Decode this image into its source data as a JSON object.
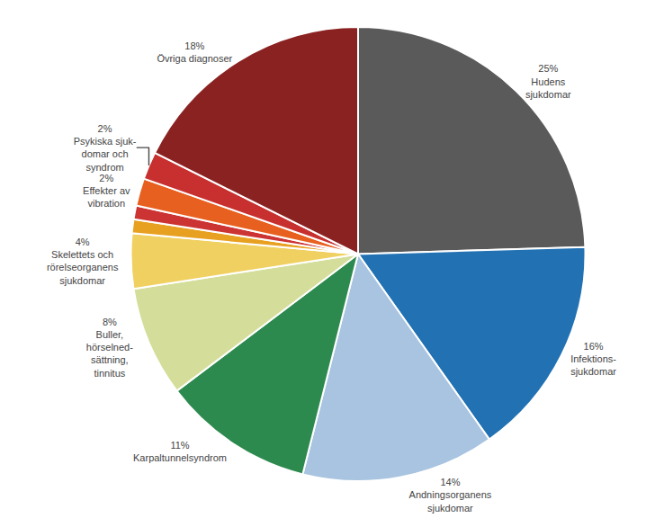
{
  "chart_data": {
    "type": "pie",
    "categories": [
      "Hudens\nsjukdomar",
      "Infektions-\nsjukdomar",
      "Andningsorganens\nsjukdomar",
      "Karpaltunnelsyndrom",
      "Buller,\nhörselned-\nsättning,\ntinnitus",
      "Skelettets och\nrörelseorganens\nsjukdomar",
      null,
      null,
      "Effekter av\nvibration",
      "Psykiska sjuk-\ndomar och\nsyndrom",
      "Övriga diagnoser"
    ],
    "values": [
      25,
      16,
      14,
      11,
      8,
      4,
      1,
      1,
      2,
      2,
      18
    ],
    "value_labels": [
      "25%",
      "16%",
      "14%",
      "11%",
      "8%",
      "4%",
      null,
      null,
      "2%",
      "2%",
      "18%"
    ],
    "data_labels": true,
    "colors": [
      "#5a5a5a",
      "#2271b3",
      "#a8c4e0",
      "#2d8a4e",
      "#d4de9a",
      "#f0d060",
      "#e8a020",
      "#cc3333",
      "#e86020",
      "#c83030",
      "#8b2222"
    ]
  }
}
